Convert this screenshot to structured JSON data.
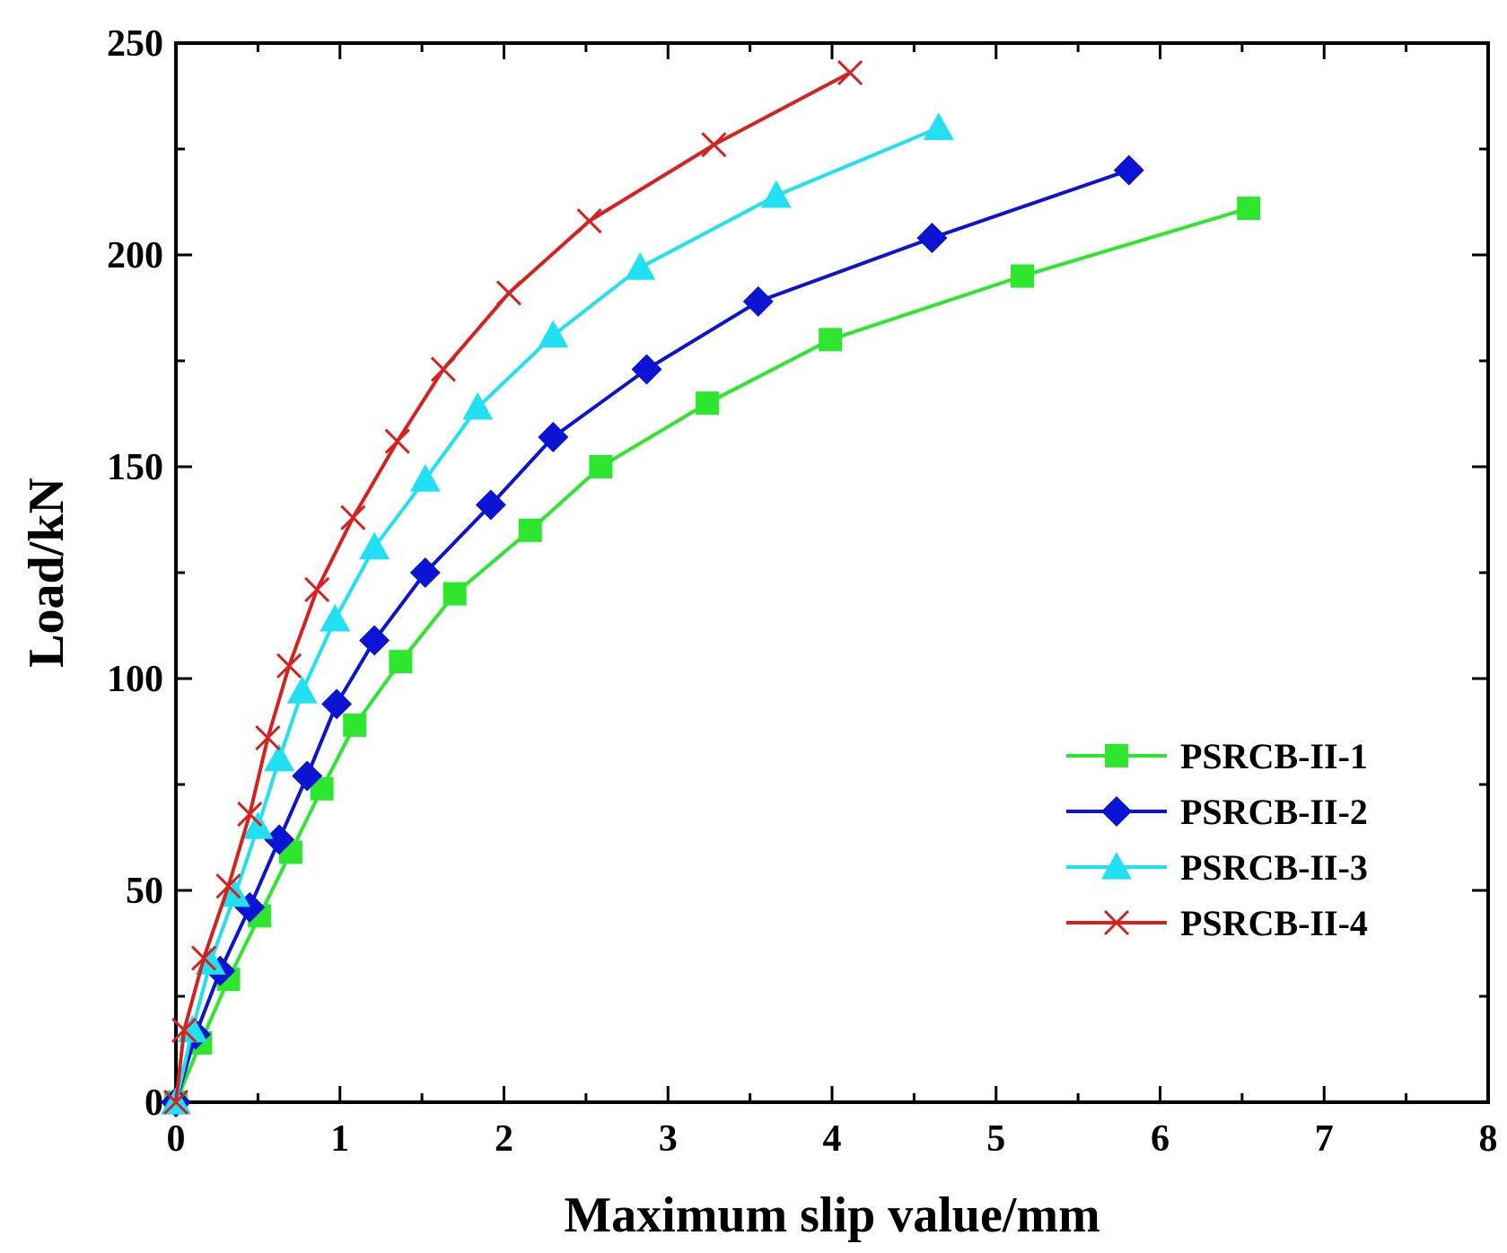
{
  "chart_data": {
    "type": "line",
    "title": "",
    "xlabel": "Maximum slip value/mm",
    "ylabel": "Load/kN",
    "xlim": [
      0,
      8
    ],
    "ylim": [
      0,
      250
    ],
    "xticks": [
      0,
      1,
      2,
      3,
      4,
      5,
      6,
      7,
      8
    ],
    "yticks": [
      0,
      50,
      100,
      150,
      200,
      250
    ],
    "xtick_labels": [
      "0",
      "1",
      "2",
      "3",
      "4",
      "5",
      "6",
      "7",
      "8"
    ],
    "ytick_labels": [
      "0",
      "50",
      "100",
      "150",
      "200",
      "250"
    ],
    "grid": false,
    "legend_position": "lower-right",
    "series": [
      {
        "name": "PSRCB-II-1",
        "color": "#2ee62e",
        "marker": "square",
        "x": [
          0,
          0.15,
          0.32,
          0.51,
          0.7,
          0.89,
          1.09,
          1.37,
          1.7,
          2.16,
          2.59,
          3.24,
          3.99,
          5.16,
          6.54
        ],
        "y": [
          0,
          14,
          29,
          44,
          59,
          74,
          89,
          104,
          120,
          135,
          150,
          165,
          180,
          195,
          211
        ]
      },
      {
        "name": "PSRCB-II-2",
        "color": "#0a14d2",
        "marker": "diamond",
        "x": [
          0,
          0.12,
          0.27,
          0.45,
          0.63,
          0.8,
          0.98,
          1.21,
          1.52,
          1.92,
          2.3,
          2.87,
          3.55,
          4.61,
          5.81
        ],
        "y": [
          0,
          16,
          31,
          46,
          62,
          77,
          94,
          109,
          125,
          141,
          157,
          173,
          189,
          204,
          220
        ]
      },
      {
        "name": "PSRCB-II-3",
        "color": "#22e0f4",
        "marker": "triangle",
        "x": [
          0,
          0.1,
          0.21,
          0.36,
          0.5,
          0.63,
          0.77,
          0.97,
          1.21,
          1.52,
          1.84,
          2.3,
          2.83,
          3.66,
          4.65
        ],
        "y": [
          0,
          17,
          33,
          49,
          65,
          81,
          97,
          114,
          131,
          147,
          164,
          181,
          197,
          214,
          230
        ]
      },
      {
        "name": "PSRCB-II-4",
        "color": "#d6221e",
        "marker": "x",
        "x": [
          0,
          0.05,
          0.17,
          0.32,
          0.45,
          0.56,
          0.69,
          0.86,
          1.08,
          1.35,
          1.63,
          2.03,
          2.52,
          3.28,
          4.11
        ],
        "y": [
          0,
          17,
          34,
          51,
          68,
          86,
          103,
          121,
          138,
          156,
          173,
          191,
          208,
          226,
          243
        ]
      }
    ]
  }
}
